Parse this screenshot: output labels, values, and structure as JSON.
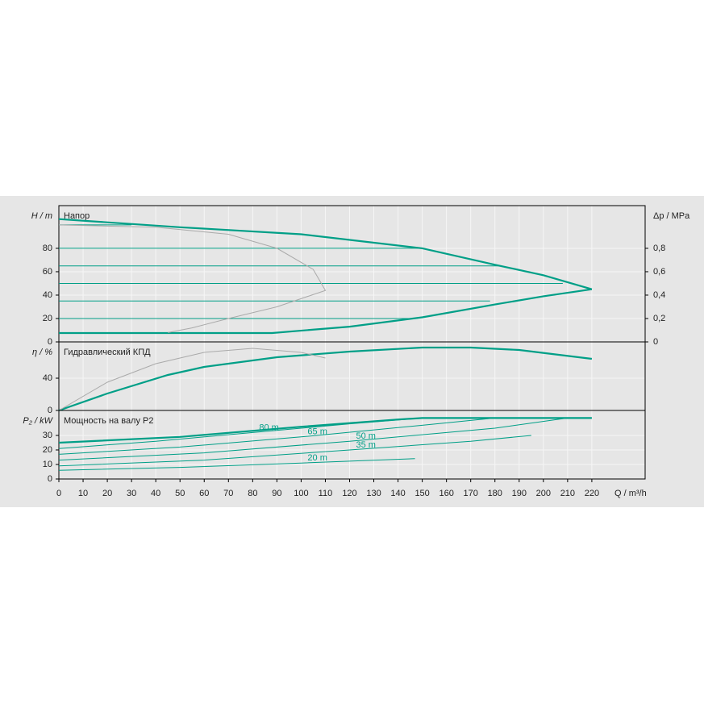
{
  "chart_data": [
    {
      "type": "line",
      "title": "Напор",
      "ylabel": "H / m",
      "y2label": "Δp / MPa",
      "xlim": [
        0,
        242
      ],
      "ylim": [
        0,
        116.5
      ],
      "yticks": [
        0,
        20,
        40,
        60,
        80
      ],
      "y2lim": [
        0,
        1.165
      ],
      "y2ticks": [
        0,
        {
          "value": 0.2,
          "label": "0,2"
        },
        {
          "value": 0.4,
          "label": "0,4"
        },
        {
          "value": 0.6,
          "label": "0,6"
        },
        {
          "value": 0.8,
          "label": "0,8"
        }
      ],
      "grid": true,
      "series": [
        {
          "color": "#009f87",
          "width": 2.2,
          "x": [
            0,
            50,
            100,
            150,
            180,
            200,
            220
          ],
          "values": [
            105,
            98,
            92,
            80,
            66,
            57,
            45
          ]
        },
        {
          "color": "#009f87",
          "width": 2.2,
          "x": [
            0,
            88,
            120,
            150,
            180,
            200,
            220
          ],
          "values": [
            7.6,
            7.6,
            13,
            21,
            32,
            39,
            45
          ]
        },
        {
          "color": "#009f87",
          "width": 1,
          "x": [
            0,
            30
          ],
          "values": [
            100,
            100
          ]
        },
        {
          "color": "#009f87",
          "width": 1,
          "x": [
            0,
            150
          ],
          "values": [
            80,
            80
          ]
        },
        {
          "color": "#009f87",
          "width": 1,
          "x": [
            0,
            182
          ],
          "values": [
            65,
            65
          ]
        },
        {
          "color": "#009f87",
          "width": 1,
          "x": [
            0,
            208
          ],
          "values": [
            50,
            50
          ]
        },
        {
          "color": "#009f87",
          "width": 1,
          "x": [
            0,
            178
          ],
          "values": [
            35,
            35
          ]
        },
        {
          "color": "#009f87",
          "width": 1,
          "x": [
            0,
            148
          ],
          "values": [
            20,
            20
          ]
        },
        {
          "color": "#aaaaaa",
          "width": 1,
          "x": [
            0,
            40,
            70,
            90,
            105,
            110,
            90,
            70,
            55,
            45
          ],
          "values": [
            100,
            98,
            92,
            80,
            62,
            44,
            30,
            20,
            12,
            8
          ]
        }
      ]
    },
    {
      "type": "line",
      "title": "Гидравлический КПД",
      "ylabel": "η / %",
      "xlim": [
        0,
        242
      ],
      "ylim": [
        0,
        85
      ],
      "yticks": [
        0,
        40
      ],
      "grid": true,
      "series": [
        {
          "color": "#009f87",
          "width": 2.2,
          "x": [
            0,
            20,
            45,
            60,
            90,
            120,
            150,
            170,
            190,
            220
          ],
          "values": [
            0,
            21,
            44,
            54,
            66,
            73,
            78,
            78,
            75,
            64
          ]
        },
        {
          "color": "#aaaaaa",
          "width": 1,
          "x": [
            0,
            20,
            40,
            60,
            80,
            100,
            110
          ],
          "values": [
            0,
            35,
            58,
            72,
            77,
            72,
            65
          ]
        }
      ]
    },
    {
      "type": "line",
      "title": "Мощность на валу P2",
      "ylabel": "P₂ / kW",
      "xlabel": "Q / m³/h",
      "xlim": [
        0,
        242
      ],
      "ylim": [
        0,
        47.2
      ],
      "yticks": [
        0,
        10,
        20,
        30
      ],
      "xticks": [
        0,
        10,
        20,
        30,
        40,
        50,
        60,
        70,
        80,
        90,
        100,
        110,
        120,
        130,
        140,
        150,
        160,
        170,
        180,
        190,
        200,
        210,
        220
      ],
      "grid": true,
      "series": [
        {
          "color": "#009f87",
          "width": 2.2,
          "x": [
            0,
            50,
            100,
            140,
            150,
            220
          ],
          "values": [
            25,
            29,
            36,
            41,
            42,
            42
          ]
        },
        {
          "name": "80 m",
          "color": "#009f87",
          "width": 1,
          "x": [
            0,
            40,
            80,
            120,
            150
          ],
          "values": [
            21,
            26,
            32,
            38,
            42
          ]
        },
        {
          "name": "65 m",
          "color": "#009f87",
          "width": 1,
          "x": [
            0,
            50,
            100,
            150,
            180
          ],
          "values": [
            17,
            22,
            29,
            37,
            42
          ]
        },
        {
          "name": "50 m",
          "color": "#009f87",
          "width": 1,
          "x": [
            0,
            60,
            120,
            180,
            210
          ],
          "values": [
            13,
            18,
            26,
            35,
            42
          ]
        },
        {
          "name": "35 m",
          "color": "#009f87",
          "width": 1,
          "x": [
            0,
            60,
            120,
            170,
            195
          ],
          "values": [
            9,
            13,
            20,
            26,
            30
          ]
        },
        {
          "name": "20 m",
          "color": "#009f87",
          "width": 1,
          "x": [
            0,
            50,
            100,
            147
          ],
          "values": [
            6,
            8,
            11,
            14
          ]
        }
      ]
    }
  ]
}
